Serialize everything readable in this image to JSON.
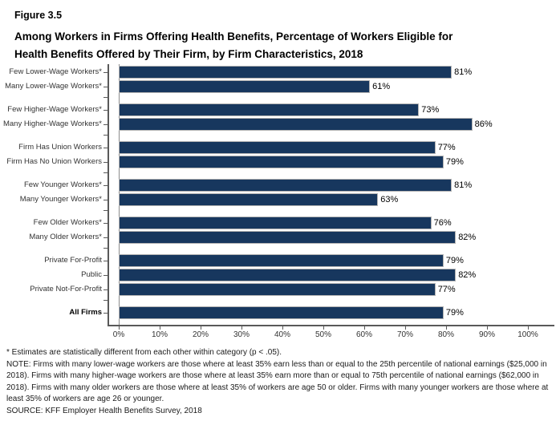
{
  "header": {
    "figure_label": "Figure 3.5",
    "title_line1": "Among Workers in Firms Offering Health Benefits, Percentage of Workers Eligible for",
    "title_line2": "Health Benefits Offered by Their Firm, by Firm Characteristics, 2018"
  },
  "chart_data": {
    "type": "bar",
    "orientation": "horizontal",
    "unit": "percent",
    "xlim": [
      0,
      100
    ],
    "x_ticks": [
      "0%",
      "10%",
      "20%",
      "30%",
      "40%",
      "50%",
      "60%",
      "70%",
      "80%",
      "90%",
      "100%"
    ],
    "grid": false,
    "legend": false,
    "bar_color": "#17375E",
    "bar_border_color": "#B3B3B3",
    "groups": [
      {
        "bars": [
          {
            "category": "Few Lower-Wage Workers*",
            "value": 81,
            "label": "81%"
          },
          {
            "category": "Many Lower-Wage Workers*",
            "value": 61,
            "label": "61%"
          }
        ]
      },
      {
        "bars": [
          {
            "category": "Few Higher-Wage Workers*",
            "value": 73,
            "label": "73%"
          },
          {
            "category": "Many Higher-Wage Workers*",
            "value": 86,
            "label": "86%"
          }
        ]
      },
      {
        "bars": [
          {
            "category": "Firm Has Union Workers",
            "value": 77,
            "label": "77%"
          },
          {
            "category": "Firm Has No Union Workers",
            "value": 79,
            "label": "79%"
          }
        ]
      },
      {
        "bars": [
          {
            "category": "Few Younger Workers*",
            "value": 81,
            "label": "81%"
          },
          {
            "category": "Many Younger Workers*",
            "value": 63,
            "label": "63%"
          }
        ]
      },
      {
        "bars": [
          {
            "category": "Few Older Workers*",
            "value": 76,
            "label": "76%"
          },
          {
            "category": "Many Older Workers*",
            "value": 82,
            "label": "82%"
          }
        ]
      },
      {
        "bars": [
          {
            "category": "Private For-Profit",
            "value": 79,
            "label": "79%"
          },
          {
            "category": "Public",
            "value": 82,
            "label": "82%"
          },
          {
            "category": "Private Not-For-Profit",
            "value": 77,
            "label": "77%"
          }
        ]
      },
      {
        "bars": [
          {
            "category": "All Firms",
            "value": 79,
            "label": "79%"
          }
        ]
      }
    ]
  },
  "footnotes": {
    "asterisk": "* Estimates are statistically different from each other within category (p < .05).",
    "note": "NOTE: Firms with many lower-wage workers are those where at least 35% earn less than or equal to the 25th percentile of national earnings ($25,000 in 2018). Firms with many higher-wage workers are those where at least 35% earn more than or equal to 75th percentile of national earnings ($62,000 in 2018). Firms with many older workers are those where at least 35% of workers are age 50 or older. Firms with many younger workers are those where at least 35% of workers are age 26 or younger.",
    "source": "SOURCE: KFF Employer Health Benefits Survey, 2018"
  }
}
